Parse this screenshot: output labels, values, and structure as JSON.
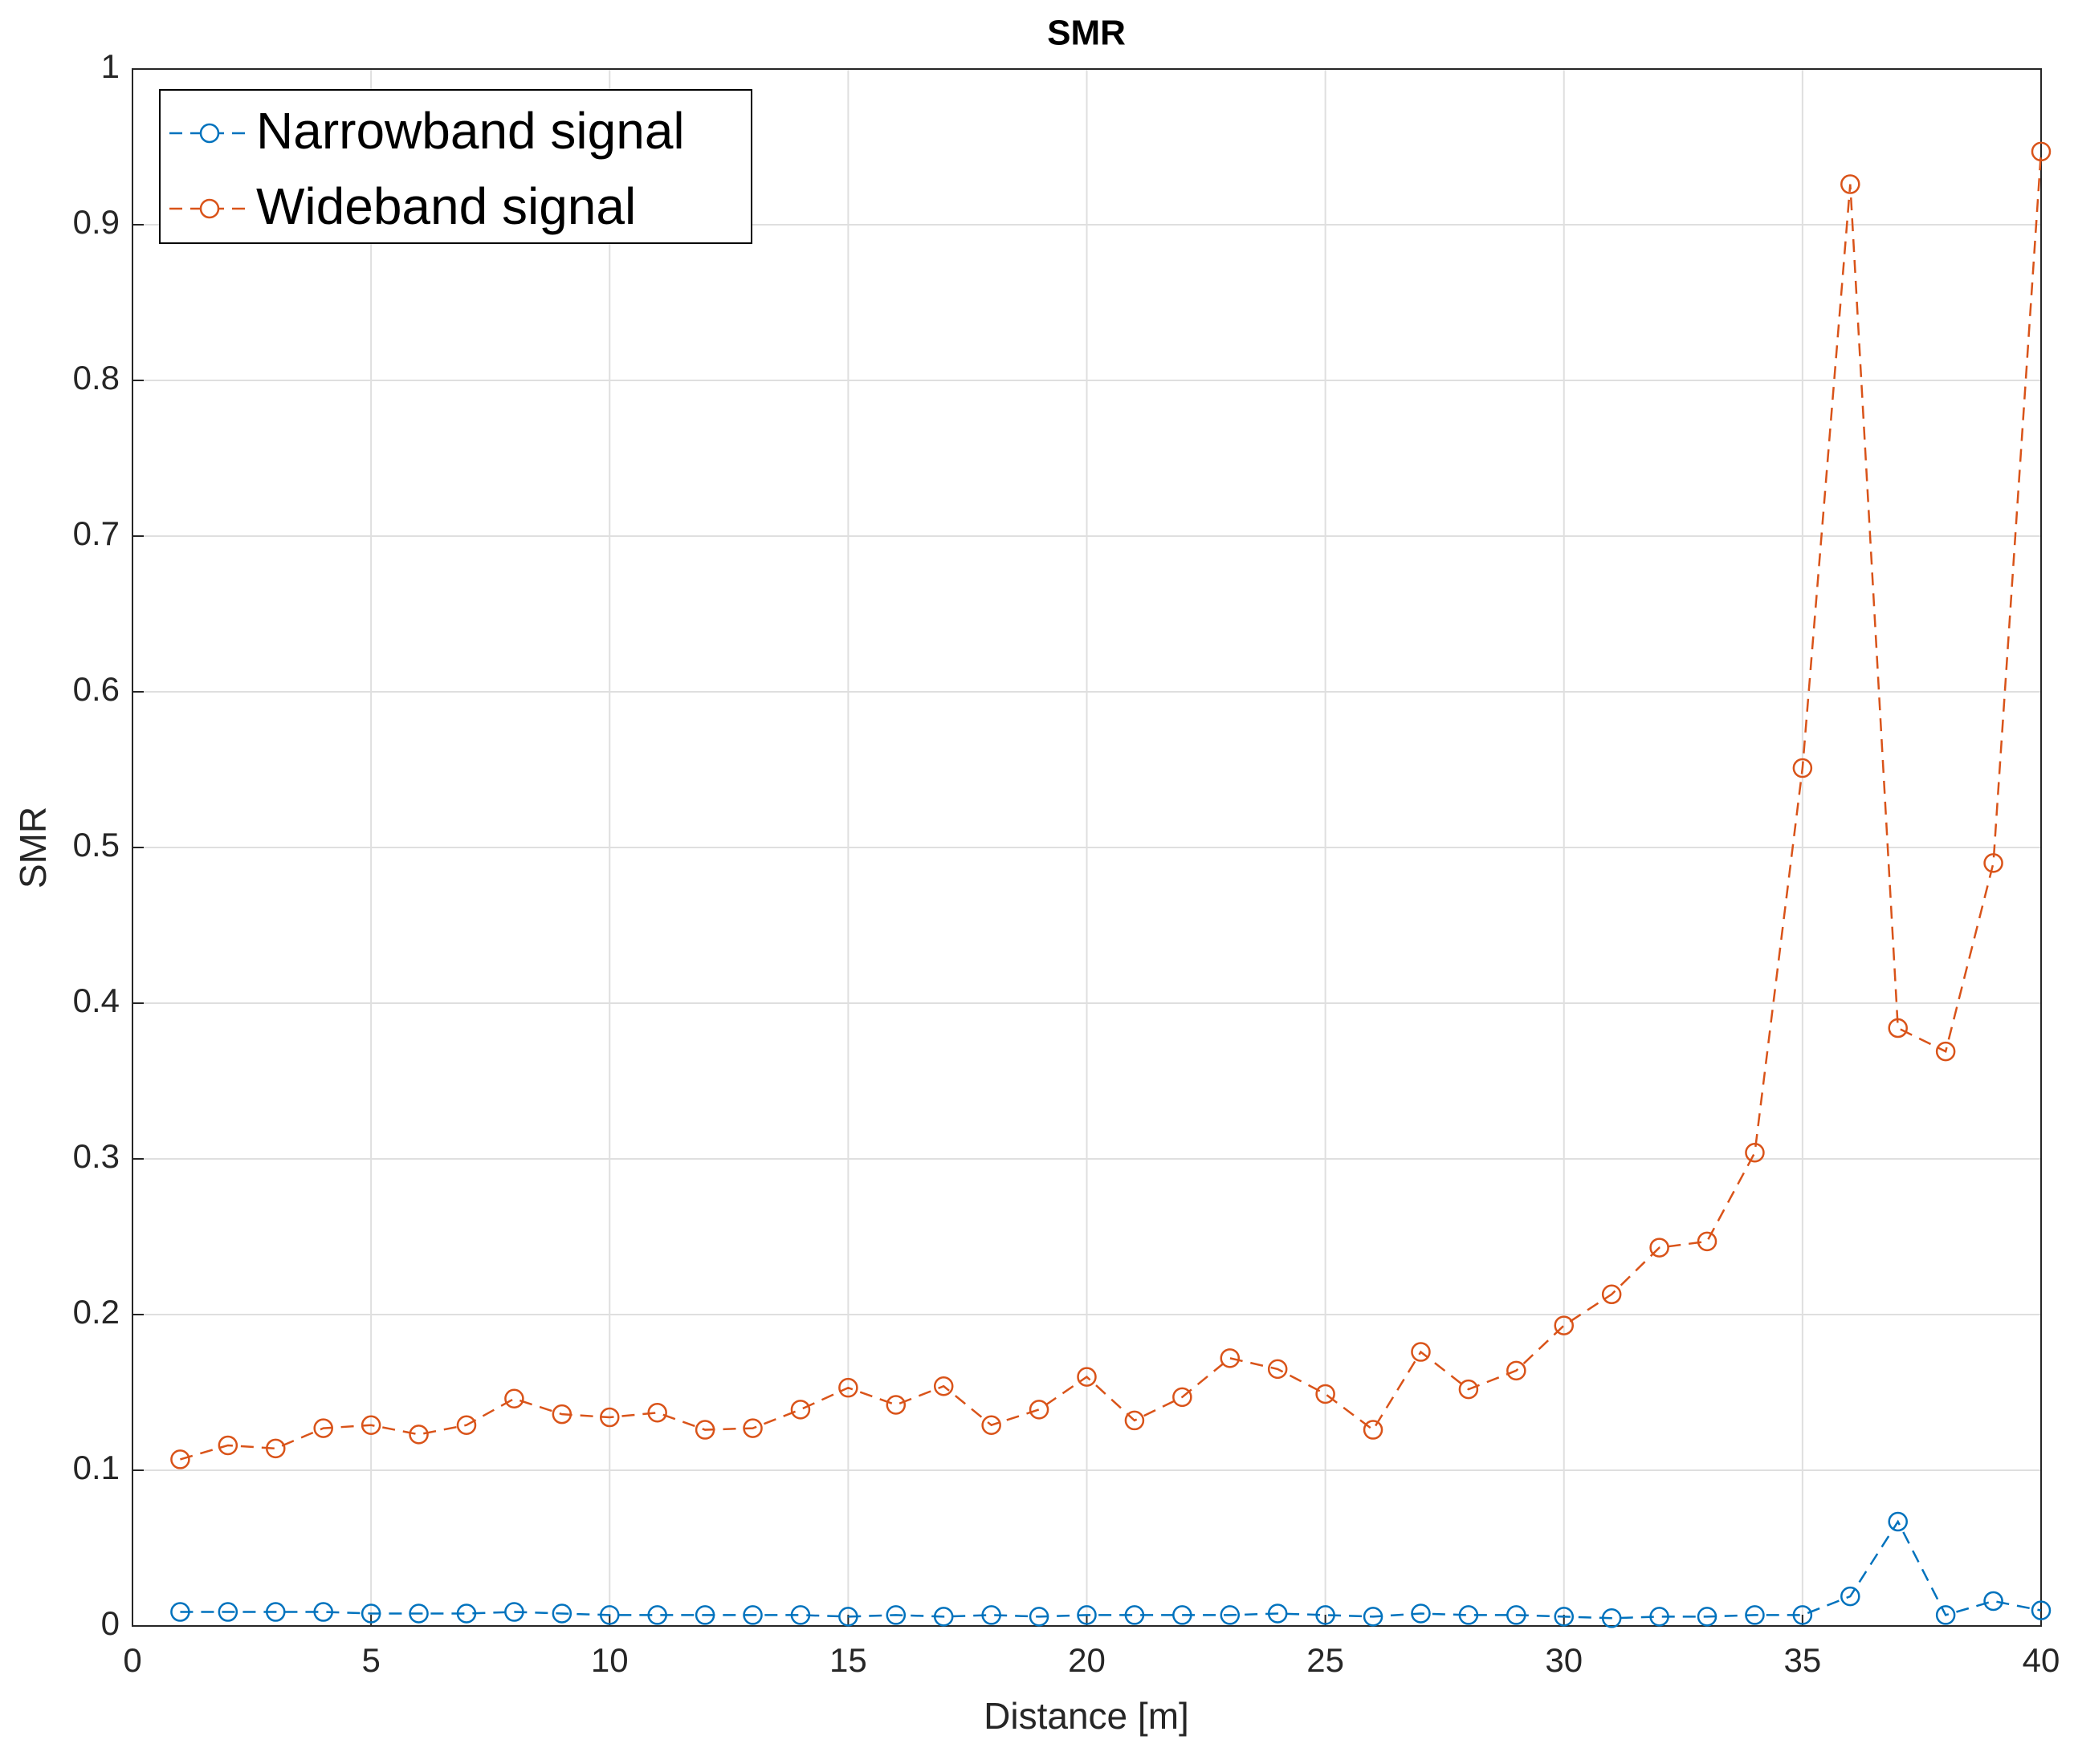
{
  "chart_data": {
    "type": "line",
    "title": "SMR",
    "x_label": "Distance [m]",
    "y_label": "SMR",
    "x": [
      1,
      2,
      3,
      4,
      5,
      6,
      7,
      8,
      9,
      10,
      11,
      12,
      13,
      14,
      15,
      16,
      17,
      18,
      19,
      20,
      21,
      22,
      23,
      24,
      25,
      26,
      27,
      28,
      29,
      30,
      31,
      32,
      33,
      34,
      35,
      36,
      37,
      38,
      39,
      40
    ],
    "series": [
      {
        "name": "Narrowband signal",
        "color": "#0072BD",
        "values": [
          0.009,
          0.009,
          0.009,
          0.009,
          0.008,
          0.008,
          0.008,
          0.009,
          0.008,
          0.007,
          0.007,
          0.007,
          0.007,
          0.007,
          0.006,
          0.007,
          0.006,
          0.007,
          0.006,
          0.007,
          0.007,
          0.007,
          0.007,
          0.008,
          0.007,
          0.006,
          0.008,
          0.007,
          0.007,
          0.006,
          0.005,
          0.006,
          0.006,
          0.007,
          0.007,
          0.019,
          0.067,
          0.007,
          0.016,
          0.01
        ]
      },
      {
        "name": "Wideband signal",
        "color": "#D95319",
        "values": [
          0.107,
          0.116,
          0.114,
          0.127,
          0.129,
          0.123,
          0.129,
          0.146,
          0.136,
          0.134,
          0.137,
          0.126,
          0.127,
          0.139,
          0.153,
          0.142,
          0.154,
          0.129,
          0.139,
          0.16,
          0.132,
          0.147,
          0.172,
          0.165,
          0.149,
          0.126,
          0.176,
          0.152,
          0.164,
          0.193,
          0.213,
          0.243,
          0.247,
          0.304,
          0.551,
          0.926,
          0.384,
          0.369,
          0.49,
          0.947
        ]
      }
    ],
    "xlim": [
      0,
      40
    ],
    "xticks": [
      0,
      5,
      10,
      15,
      20,
      25,
      30,
      35,
      40
    ],
    "ylim": [
      0,
      1
    ],
    "yticks": [
      0,
      0.1,
      0.2,
      0.3,
      0.4,
      0.5,
      0.6,
      0.7,
      0.8,
      0.9,
      1
    ],
    "grid": true,
    "legend_loc": "northwest"
  }
}
